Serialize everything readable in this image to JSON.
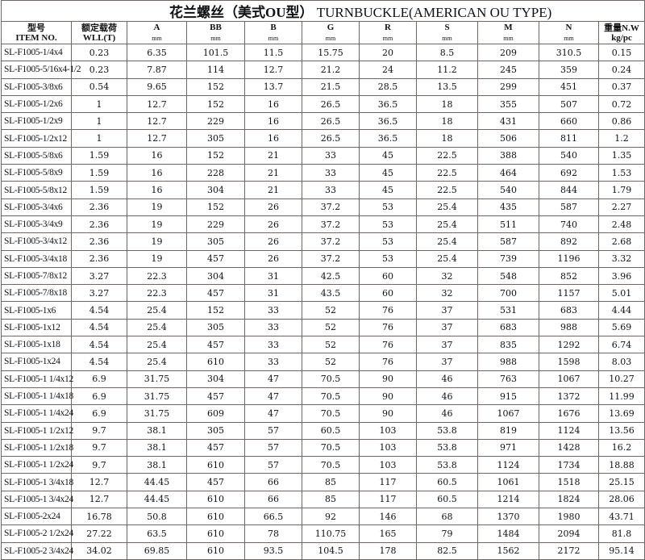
{
  "title": {
    "cn": "花兰螺丝（美式OU型）",
    "en": "TURNBUCKLE(AMERICAN OU TYPE)"
  },
  "columns": [
    {
      "l1": "型号",
      "l2": "ITEM NO."
    },
    {
      "l1": "额定载荷",
      "l2": "WLL(T)"
    },
    {
      "l1": "A",
      "l2": "mm"
    },
    {
      "l1": "BB",
      "l2": "mm"
    },
    {
      "l1": "B",
      "l2": "mm"
    },
    {
      "l1": "G",
      "l2": "mm"
    },
    {
      "l1": "R",
      "l2": "mm"
    },
    {
      "l1": "S",
      "l2": "mm"
    },
    {
      "l1": "M",
      "l2": "mm"
    },
    {
      "l1": "N",
      "l2": "mm"
    },
    {
      "l1": "重量N.W",
      "l2": "kg/pc"
    }
  ],
  "rows": [
    [
      "SL-F1005-1/4x4",
      "0.23",
      "6.35",
      "101.5",
      "11.5",
      "15.75",
      "20",
      "8.5",
      "209",
      "310.5",
      "0.15"
    ],
    [
      "SL-F1005-5/16x4-1/2",
      "0.23",
      "7.87",
      "114",
      "12.7",
      "21.2",
      "24",
      "11.2",
      "245",
      "359",
      "0.24"
    ],
    [
      "SL-F1005-3/8x6",
      "0.54",
      "9.65",
      "152",
      "13.7",
      "21.5",
      "28.5",
      "13.5",
      "299",
      "451",
      "0.37"
    ],
    [
      "SL-F1005-1/2x6",
      "1",
      "12.7",
      "152",
      "16",
      "26.5",
      "36.5",
      "18",
      "355",
      "507",
      "0.72"
    ],
    [
      "SL-F1005-1/2x9",
      "1",
      "12.7",
      "229",
      "16",
      "26.5",
      "36.5",
      "18",
      "431",
      "660",
      "0.86"
    ],
    [
      "SL-F1005-1/2x12",
      "1",
      "12.7",
      "305",
      "16",
      "26.5",
      "36.5",
      "18",
      "506",
      "811",
      "1.2"
    ],
    [
      "SL-F1005-5/8x6",
      "1.59",
      "16",
      "152",
      "21",
      "33",
      "45",
      "22.5",
      "388",
      "540",
      "1.35"
    ],
    [
      "SL-F1005-5/8x9",
      "1.59",
      "16",
      "228",
      "21",
      "33",
      "45",
      "22.5",
      "464",
      "692",
      "1.53"
    ],
    [
      "SL-F1005-5/8x12",
      "1.59",
      "16",
      "304",
      "21",
      "33",
      "45",
      "22.5",
      "540",
      "844",
      "1.79"
    ],
    [
      "SL-F1005-3/4x6",
      "2.36",
      "19",
      "152",
      "26",
      "37.2",
      "53",
      "25.4",
      "435",
      "587",
      "2.27"
    ],
    [
      "SL-F1005-3/4x9",
      "2.36",
      "19",
      "229",
      "26",
      "37.2",
      "53",
      "25.4",
      "511",
      "740",
      "2.48"
    ],
    [
      "SL-F1005-3/4x12",
      "2.36",
      "19",
      "305",
      "26",
      "37.2",
      "53",
      "25.4",
      "587",
      "892",
      "2.68"
    ],
    [
      "SL-F1005-3/4x18",
      "2.36",
      "19",
      "457",
      "26",
      "37.2",
      "53",
      "25.4",
      "739",
      "1196",
      "3.32"
    ],
    [
      "SL-F1005-7/8x12",
      "3.27",
      "22.3",
      "304",
      "31",
      "42.5",
      "60",
      "32",
      "548",
      "852",
      "3.96"
    ],
    [
      "SL-F1005-7/8x18",
      "3.27",
      "22.3",
      "457",
      "31",
      "43.5",
      "60",
      "32",
      "700",
      "1157",
      "5.01"
    ],
    [
      "SL-F1005-1x6",
      "4.54",
      "25.4",
      "152",
      "33",
      "52",
      "76",
      "37",
      "531",
      "683",
      "4.44"
    ],
    [
      "SL-F1005-1x12",
      "4.54",
      "25.4",
      "305",
      "33",
      "52",
      "76",
      "37",
      "683",
      "988",
      "5.69"
    ],
    [
      "SL-F1005-1x18",
      "4.54",
      "25.4",
      "457",
      "33",
      "52",
      "76",
      "37",
      "835",
      "1292",
      "6.74"
    ],
    [
      "SL-F1005-1x24",
      "4.54",
      "25.4",
      "610",
      "33",
      "52",
      "76",
      "37",
      "988",
      "1598",
      "8.03"
    ],
    [
      "SL-F1005-1 1/4x12",
      "6.9",
      "31.75",
      "304",
      "47",
      "70.5",
      "90",
      "46",
      "763",
      "1067",
      "10.27"
    ],
    [
      "SL-F1005-1 1/4x18",
      "6.9",
      "31.75",
      "457",
      "47",
      "70.5",
      "90",
      "46",
      "915",
      "1372",
      "11.99"
    ],
    [
      "SL-F1005-1 1/4x24",
      "6.9",
      "31.75",
      "609",
      "47",
      "70.5",
      "90",
      "46",
      "1067",
      "1676",
      "13.69"
    ],
    [
      "SL-F1005-1 1/2x12",
      "9.7",
      "38.1",
      "305",
      "57",
      "60.5",
      "103",
      "53.8",
      "819",
      "1124",
      "13.56"
    ],
    [
      "SL-F1005-1 1/2x18",
      "9.7",
      "38.1",
      "457",
      "57",
      "70.5",
      "103",
      "53.8",
      "971",
      "1428",
      "16.2"
    ],
    [
      "SL-F1005-1 1/2x24",
      "9.7",
      "38.1",
      "610",
      "57",
      "70.5",
      "103",
      "53.8",
      "1124",
      "1734",
      "18.88"
    ],
    [
      "SL-F1005-1 3/4x18",
      "12.7",
      "44.45",
      "457",
      "66",
      "85",
      "117",
      "60.5",
      "1061",
      "1518",
      "25.15"
    ],
    [
      "SL-F1005-1 3/4x24",
      "12.7",
      "44.45",
      "610",
      "66",
      "85",
      "117",
      "60.5",
      "1214",
      "1824",
      "28.06"
    ],
    [
      "SL-F1005-2x24",
      "16.78",
      "50.8",
      "610",
      "66.5",
      "92",
      "146",
      "68",
      "1370",
      "1980",
      "43.71"
    ],
    [
      "SL-F1005-2 1/2x24",
      "27.22",
      "63.5",
      "610",
      "78",
      "110.75",
      "165",
      "79",
      "1484",
      "2094",
      "81.8"
    ],
    [
      "SL-F1005-2 3/4x24",
      "34.02",
      "69.85",
      "610",
      "93.5",
      "104.5",
      "178",
      "82.5",
      "1562",
      "2172",
      "95.14"
    ]
  ]
}
